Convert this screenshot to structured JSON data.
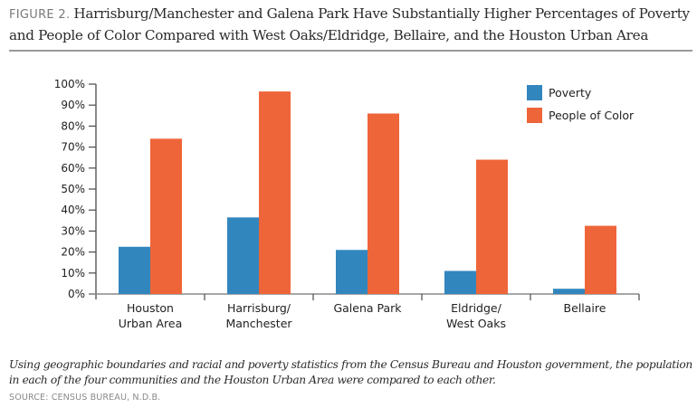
{
  "header": {
    "figure_label": "FIGURE 2.",
    "title": "Harrisburg/Manchester and Galena Park Have Substantially Higher Percentages of Poverty and People of Color Compared with West Oaks/Eldridge, Bellaire, and the Houston Urban Area"
  },
  "footer": {
    "note": "Using geographic boundaries and racial and poverty statistics from the Census Bureau and Houston government, the  population in each of the four communities and the Houston Urban Area were compared to each other.",
    "source": "SOURCE: CENSUS BUREAU, N.D.B."
  },
  "chart_data": {
    "type": "bar",
    "title": "Harrisburg/Manchester and Galena Park Have Substantially Higher Percentages of Poverty and People of Color Compared with West Oaks/Eldridge, Bellaire, and the Houston Urban Area",
    "xlabel": "",
    "ylabel": "",
    "ylim": [
      0,
      100
    ],
    "yticks": [
      "0%",
      "10%",
      "20%",
      "30%",
      "40%",
      "50%",
      "60%",
      "70%",
      "80%",
      "90%",
      "100%"
    ],
    "grid": false,
    "legend_position": "top-right",
    "categories": [
      [
        "Houston",
        "Urban Area"
      ],
      [
        "Harrisburg/",
        "Manchester"
      ],
      [
        "Galena Park"
      ],
      [
        "Eldridge/",
        "West Oaks"
      ],
      [
        "Bellaire"
      ]
    ],
    "series": [
      {
        "name": "Poverty",
        "color": "#3286be",
        "values": [
          22.5,
          36.5,
          21,
          11,
          2.5
        ]
      },
      {
        "name": "People of Color",
        "color": "#ee6539",
        "values": [
          74,
          96.5,
          86,
          64,
          32.5
        ]
      }
    ]
  }
}
